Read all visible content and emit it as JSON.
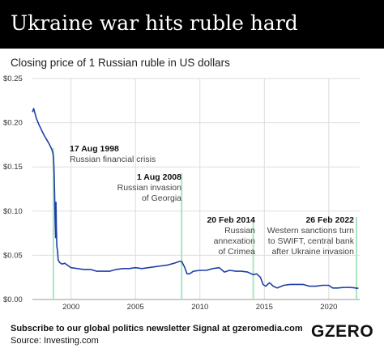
{
  "header": {
    "title": "Ukraine war hits ruble hard"
  },
  "subtitle": "Closing price of 1 Russian ruble in US dollars",
  "footer": {
    "newsletter": "Subscribe to our global politics newsletter Signal at gzeromedia.com",
    "source": "Source: Investing.com",
    "logo": "GZERO"
  },
  "colors": {
    "line": "#1f3fa8",
    "marker": "#a8e6c0",
    "grid": "#dddddd",
    "header_bg": "#000000"
  },
  "chart_data": {
    "type": "line",
    "title": "Closing price of 1 Russian ruble in US dollars",
    "xlabel": "",
    "ylabel": "",
    "xlim": [
      1997.0,
      2022.4
    ],
    "ylim": [
      0,
      0.25
    ],
    "y_ticks": [
      {
        "value": 0.25,
        "label": "$0.25"
      },
      {
        "value": 0.2,
        "label": "$0.20"
      },
      {
        "value": 0.15,
        "label": "$0.15"
      },
      {
        "value": 0.1,
        "label": "$0.10"
      },
      {
        "value": 0.05,
        "label": "$0.05"
      },
      {
        "value": 0.0,
        "label": "$0.00"
      }
    ],
    "x_ticks": [
      {
        "value": 2000,
        "label": "2000"
      },
      {
        "value": 2005,
        "label": "2005"
      },
      {
        "value": 2010,
        "label": "2010"
      },
      {
        "value": 2015,
        "label": "2015"
      },
      {
        "value": 2020,
        "label": "2020"
      }
    ],
    "grid": true,
    "series": [
      {
        "points": [
          [
            1997.0,
            0.212
          ],
          [
            1997.1,
            0.216
          ],
          [
            1997.3,
            0.205
          ],
          [
            1997.5,
            0.198
          ],
          [
            1997.7,
            0.192
          ],
          [
            1997.9,
            0.186
          ],
          [
            1998.1,
            0.181
          ],
          [
            1998.3,
            0.176
          ],
          [
            1998.5,
            0.17
          ],
          [
            1998.6,
            0.165
          ],
          [
            1998.63,
            0.161
          ],
          [
            1998.67,
            0.15
          ],
          [
            1998.72,
            0.12
          ],
          [
            1998.76,
            0.09
          ],
          [
            1998.8,
            0.07
          ],
          [
            1998.83,
            0.11
          ],
          [
            1998.86,
            0.08
          ],
          [
            1998.9,
            0.06
          ],
          [
            1998.95,
            0.055
          ],
          [
            1999.0,
            0.045
          ],
          [
            1999.1,
            0.042
          ],
          [
            1999.3,
            0.04
          ],
          [
            1999.5,
            0.041
          ],
          [
            1999.8,
            0.038
          ],
          [
            2000.0,
            0.036
          ],
          [
            2000.5,
            0.035
          ],
          [
            2001.0,
            0.034
          ],
          [
            2001.5,
            0.034
          ],
          [
            2002.0,
            0.032
          ],
          [
            2002.5,
            0.032
          ],
          [
            2003.0,
            0.032
          ],
          [
            2003.5,
            0.034
          ],
          [
            2004.0,
            0.035
          ],
          [
            2004.5,
            0.035
          ],
          [
            2005.0,
            0.036
          ],
          [
            2005.5,
            0.035
          ],
          [
            2006.0,
            0.036
          ],
          [
            2006.5,
            0.037
          ],
          [
            2007.0,
            0.038
          ],
          [
            2007.5,
            0.039
          ],
          [
            2008.0,
            0.041
          ],
          [
            2008.4,
            0.043
          ],
          [
            2008.58,
            0.043
          ],
          [
            2008.8,
            0.037
          ],
          [
            2009.0,
            0.029
          ],
          [
            2009.2,
            0.029
          ],
          [
            2009.5,
            0.032
          ],
          [
            2010.0,
            0.033
          ],
          [
            2010.5,
            0.033
          ],
          [
            2011.0,
            0.035
          ],
          [
            2011.5,
            0.036
          ],
          [
            2011.9,
            0.031
          ],
          [
            2012.3,
            0.033
          ],
          [
            2012.8,
            0.032
          ],
          [
            2013.2,
            0.032
          ],
          [
            2013.7,
            0.031
          ],
          [
            2014.0,
            0.029
          ],
          [
            2014.14,
            0.028
          ],
          [
            2014.4,
            0.029
          ],
          [
            2014.7,
            0.025
          ],
          [
            2014.9,
            0.017
          ],
          [
            2015.1,
            0.015
          ],
          [
            2015.4,
            0.019
          ],
          [
            2015.7,
            0.015
          ],
          [
            2016.0,
            0.013
          ],
          [
            2016.5,
            0.016
          ],
          [
            2017.0,
            0.017
          ],
          [
            2017.5,
            0.017
          ],
          [
            2018.0,
            0.017
          ],
          [
            2018.5,
            0.015
          ],
          [
            2019.0,
            0.015
          ],
          [
            2019.5,
            0.016
          ],
          [
            2020.0,
            0.016
          ],
          [
            2020.3,
            0.013
          ],
          [
            2020.7,
            0.013
          ],
          [
            2021.0,
            0.0135
          ],
          [
            2021.5,
            0.0137
          ],
          [
            2021.9,
            0.0134
          ],
          [
            2022.1,
            0.013
          ],
          [
            2022.15,
            0.0125
          ],
          [
            2022.3,
            0.013
          ]
        ]
      }
    ],
    "annotations": [
      {
        "x": 1998.63,
        "date": "17 Aug 1998",
        "lines": [
          "Russian financial crisis"
        ]
      },
      {
        "x": 2008.58,
        "date": "1 Aug 2008",
        "lines": [
          "Russian invasion",
          "of Georgia"
        ]
      },
      {
        "x": 2014.14,
        "date": "20 Feb 2014",
        "lines": [
          "Russian",
          "annexation",
          "of Crimea"
        ]
      },
      {
        "x": 2022.15,
        "date": "26 Feb 2022",
        "lines": [
          "Western sanctions turn",
          "to SWIFT, central bank",
          "after Ukraine invasion"
        ]
      }
    ]
  }
}
